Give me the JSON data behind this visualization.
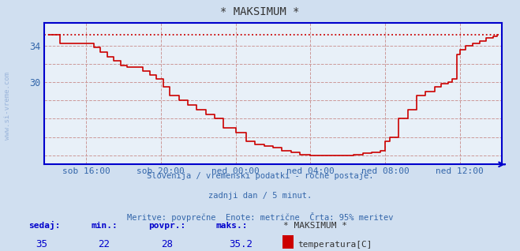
{
  "title": "* MAKSIMUM *",
  "bg_color": "#d0dff0",
  "plot_bg_color": "#e8f0f8",
  "line_color": "#cc0000",
  "axis_color": "#0000cc",
  "text_color": "#3366aa",
  "grid_color": "#cc9999",
  "ylim": [
    21.0,
    36.5
  ],
  "max_value": 35.2,
  "min_value": 22,
  "avg_value": 28,
  "current_value": 35,
  "subtitle1": "Slovenija / vremenski podatki - ročne postaje.",
  "subtitle2": "zadnji dan / 5 minut.",
  "subtitle3": "Meritve: povprečne  Enote: metrične  Črta: 95% meritev",
  "legend_label": "temperatura[C]",
  "legend_color": "#cc0000",
  "xtick_labels": [
    "sob 16:00",
    "sob 20:00",
    "ned 00:00",
    "ned 04:00",
    "ned 08:00",
    "ned 12:00"
  ],
  "ylabel_text": "www.si-vreme.com",
  "time_data": [
    0.0,
    0.018,
    0.025,
    0.042,
    0.055,
    0.07,
    0.083,
    0.1,
    0.115,
    0.13,
    0.145,
    0.16,
    0.175,
    0.19,
    0.21,
    0.225,
    0.24,
    0.255,
    0.27,
    0.29,
    0.31,
    0.33,
    0.35,
    0.37,
    0.39,
    0.417,
    0.44,
    0.46,
    0.48,
    0.5,
    0.52,
    0.54,
    0.56,
    0.583,
    0.6,
    0.62,
    0.64,
    0.66,
    0.68,
    0.7,
    0.72,
    0.74,
    0.75,
    0.76,
    0.78,
    0.8,
    0.82,
    0.84,
    0.86,
    0.875,
    0.89,
    0.9,
    0.91,
    0.917,
    0.93,
    0.945,
    0.96,
    0.975,
    0.99,
    1.0
  ],
  "temp_data": [
    35.2,
    35.2,
    34.2,
    34.2,
    34.2,
    34.2,
    34.2,
    33.8,
    33.3,
    32.8,
    32.3,
    31.8,
    31.6,
    31.6,
    31.2,
    30.8,
    30.3,
    29.5,
    28.5,
    28.0,
    27.5,
    27.0,
    26.5,
    26.0,
    25.0,
    24.5,
    23.5,
    23.2,
    23.0,
    22.8,
    22.5,
    22.3,
    22.1,
    22.0,
    22.0,
    22.0,
    22.0,
    22.0,
    22.1,
    22.2,
    22.3,
    22.5,
    23.5,
    24.0,
    26.0,
    27.0,
    28.5,
    29.0,
    29.5,
    29.8,
    30.0,
    30.3,
    33.0,
    33.5,
    34.0,
    34.2,
    34.5,
    34.8,
    35.0,
    35.2
  ]
}
